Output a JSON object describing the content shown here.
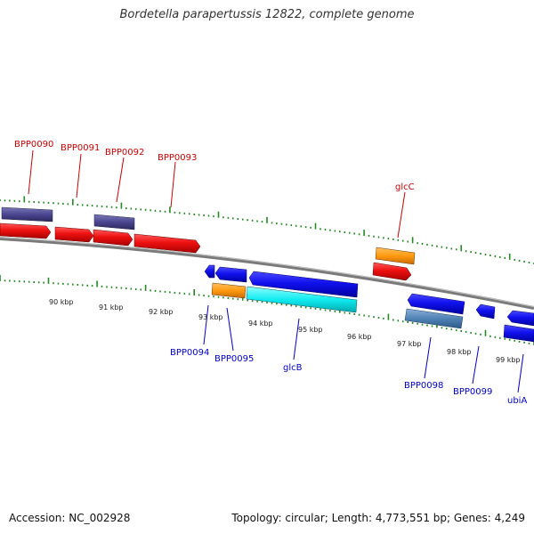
{
  "title": "Bordetella parapertussis 12822, complete genome",
  "footer": {
    "accession": "Accession: NC_002928",
    "topology": "Topology: circular; Length: 4,773,551 bp; Genes: 4,249"
  },
  "colors": {
    "forward_label": "#cc0000",
    "reverse_label": "#0000cc",
    "tick": "#228b22",
    "backbone": "#7a7a7a"
  },
  "scale_labels": [
    "90 kbp",
    "91 kbp",
    "92 kbp",
    "93 kbp",
    "94 kbp",
    "95 kbp",
    "96 kbp",
    "97 kbp",
    "98 kbp",
    "99 kbp"
  ],
  "forward_labels": [
    "BPP0090",
    "BPP0091",
    "BPP0092",
    "BPP0093",
    "glcC"
  ],
  "reverse_labels": [
    "BPP0094",
    "BPP0095",
    "glcB",
    "BPP0098",
    "BPP0099",
    "ubiA"
  ]
}
